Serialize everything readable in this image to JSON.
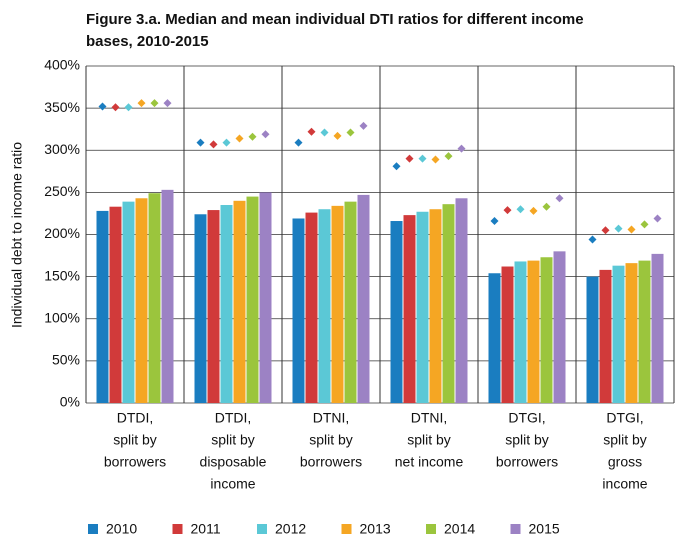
{
  "chart_data": {
    "type": "bar",
    "title": [
      "Figure 3.a. Median and mean individual DTI ratios for different income",
      "bases, 2010-2015"
    ],
    "y_label": "Individual debt to income ratio",
    "categories": [
      [
        "DTDI,",
        "split by",
        "borrowers"
      ],
      [
        "DTDI,",
        "split by",
        "disposable",
        "income"
      ],
      [
        "DTNI,",
        "split by",
        "borrowers"
      ],
      [
        "DTNI,",
        "split by",
        "net income"
      ],
      [
        "DTGI,",
        "split by",
        "borrowers"
      ],
      [
        "DTGI,",
        "split by",
        "gross",
        "income"
      ]
    ],
    "series": [
      {
        "name": "2010",
        "color": "#1a7dc0",
        "values": [
          228,
          224,
          219,
          216,
          154,
          150
        ],
        "means": [
          352,
          309,
          309,
          281,
          216,
          194
        ]
      },
      {
        "name": "2011",
        "color": "#d13a3a",
        "values": [
          233,
          229,
          226,
          223,
          162,
          158
        ],
        "means": [
          351,
          307,
          322,
          290,
          229,
          205
        ]
      },
      {
        "name": "2012",
        "color": "#5bc8d6",
        "values": [
          239,
          235,
          230,
          227,
          168,
          163
        ],
        "means": [
          351,
          309,
          321,
          290,
          230,
          207
        ]
      },
      {
        "name": "2013",
        "color": "#f5a623",
        "values": [
          243,
          240,
          234,
          230,
          169,
          166
        ],
        "means": [
          356,
          314,
          317,
          289,
          228,
          206
        ]
      },
      {
        "name": "2014",
        "color": "#9bc53d",
        "values": [
          249,
          245,
          239,
          236,
          173,
          169
        ],
        "means": [
          356,
          316,
          321,
          293,
          233,
          212
        ]
      },
      {
        "name": "2015",
        "color": "#9c82c4",
        "values": [
          253,
          250,
          247,
          243,
          180,
          177
        ],
        "means": [
          356,
          319,
          329,
          302,
          243,
          219
        ]
      }
    ],
    "ylim": [
      0,
      400
    ],
    "yticks": [
      {
        "value": 0,
        "label": "0%"
      },
      {
        "value": 50,
        "label": "50%"
      },
      {
        "value": 100,
        "label": "100%"
      },
      {
        "value": 150,
        "label": "150%"
      },
      {
        "value": 200,
        "label": "200%"
      },
      {
        "value": 250,
        "label": "250%"
      },
      {
        "value": 300,
        "label": "300%"
      },
      {
        "value": 350,
        "label": "350%"
      },
      {
        "value": 400,
        "label": "400%"
      }
    ],
    "grid": true
  }
}
